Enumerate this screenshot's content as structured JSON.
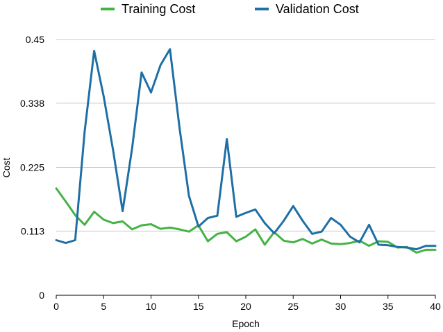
{
  "chart_data": {
    "type": "line",
    "title": "",
    "xlabel": "Epoch",
    "ylabel": "Cost",
    "xlim": [
      0,
      40
    ],
    "ylim": [
      0,
      0.45
    ],
    "xticks": [
      "0",
      "5",
      "10",
      "15",
      "20",
      "25",
      "30",
      "35",
      "40"
    ],
    "yticks": [
      "0",
      "0.113",
      "0.225",
      "0.338",
      "0.45"
    ],
    "grid": true,
    "legend_position": "top",
    "x": [
      0,
      1,
      2,
      3,
      4,
      5,
      6,
      7,
      8,
      9,
      10,
      11,
      12,
      13,
      14,
      15,
      16,
      17,
      18,
      19,
      20,
      21,
      22,
      23,
      24,
      25,
      26,
      27,
      28,
      29,
      30,
      31,
      32,
      33,
      34,
      35,
      36,
      37,
      38,
      39,
      40
    ],
    "series": [
      {
        "name": "Training Cost",
        "color": "#44b244",
        "values": [
          0.188,
          0.165,
          0.141,
          0.124,
          0.147,
          0.133,
          0.127,
          0.13,
          0.116,
          0.123,
          0.125,
          0.117,
          0.119,
          0.116,
          0.112,
          0.123,
          0.095,
          0.108,
          0.111,
          0.095,
          0.103,
          0.116,
          0.089,
          0.111,
          0.096,
          0.093,
          0.099,
          0.091,
          0.098,
          0.091,
          0.09,
          0.092,
          0.096,
          0.087,
          0.095,
          0.094,
          0.084,
          0.085,
          0.075,
          0.08,
          0.08
        ]
      },
      {
        "name": "Validation Cost",
        "color": "#1e6fa6",
        "values": [
          0.097,
          0.092,
          0.097,
          0.288,
          0.43,
          0.35,
          0.255,
          0.148,
          0.258,
          0.392,
          0.357,
          0.405,
          0.433,
          0.295,
          0.175,
          0.121,
          0.136,
          0.14,
          0.275,
          0.138,
          0.145,
          0.151,
          0.127,
          0.109,
          0.131,
          0.157,
          0.131,
          0.108,
          0.112,
          0.136,
          0.124,
          0.103,
          0.093,
          0.124,
          0.089,
          0.088,
          0.085,
          0.084,
          0.081,
          0.087,
          0.087
        ]
      }
    ]
  }
}
